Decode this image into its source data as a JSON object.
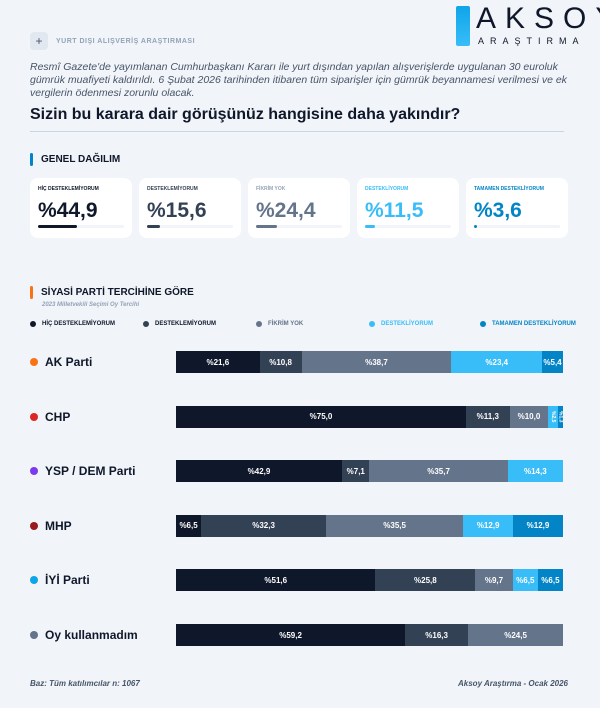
{
  "brand": {
    "name": "AKSOY",
    "sub": "ARAŞTIRMA"
  },
  "tag": "YURT DIŞI ALIŞVERİŞ ARAŞTIRMASI",
  "intro": "Resmî Gazete'de yayımlanan Cumhurbaşkanı Kararı ile yurt dışından yapılan alışverişlerde uygulanan 30 euroluk gümrük muafiyeti kaldırıldı. 6 Şubat 2026 tarihinden itibaren tüm siparişler için gümrük beyannamesi verilmesi ve ek vergilerin ödenmesi zorunlu olacak.",
  "question": "Sizin bu karara dair görüşünüz hangisine daha yakındır?",
  "section1": {
    "title": "GENEL DAĞILIM",
    "color": "#0284c7"
  },
  "section2": {
    "title": "SİYASİ PARTİ TERCİHİNE GÖRE",
    "subtitle": "2023 Milletvekili Seçimi Oy Tercihi",
    "color": "#f97316"
  },
  "footer": {
    "left": "Baz: Tüm katılımcılar n: 1067",
    "right": "Aksoy Araştırma - Ocak 2026"
  },
  "chart_data": [
    {
      "type": "bar",
      "orientation": "horizontal",
      "title": "GENEL DAĞILIM",
      "categories": [
        "HİÇ DESTEKLEMİYORUM",
        "DESTEKLEMİYORUM",
        "FİKRİM YOK",
        "DESTEKLİYORUM",
        "TAMAMEN DESTEKLİYORUM"
      ],
      "values": [
        44.9,
        15.6,
        24.4,
        11.5,
        3.6
      ],
      "labels": [
        "%44,9",
        "%15,6",
        "%24,4",
        "%11,5",
        "%3,6"
      ],
      "colors": [
        "#0f172a",
        "#334155",
        "#64748b",
        "#38bdf8",
        "#0284c7"
      ]
    },
    {
      "type": "bar",
      "stacked": true,
      "orientation": "horizontal",
      "title": "SİYASİ PARTİ TERCİHİNE GÖRE",
      "categories": [
        "AK Parti",
        "CHP",
        "YSP / DEM Parti",
        "MHP",
        "İYİ Parti",
        "Oy kullanmadım"
      ],
      "category_colors": [
        "#f97316",
        "#dc2626",
        "#7c3aed",
        "#991b1b",
        "#0ea5e9",
        "#64748b"
      ],
      "legend": "top",
      "series": [
        {
          "name": "HİÇ DESTEKLEMİYORUM",
          "color": "#0f172a",
          "values": [
            21.6,
            75.0,
            42.9,
            6.5,
            51.6,
            59.2
          ]
        },
        {
          "name": "DESTEKLEMİYORUM",
          "color": "#334155",
          "values": [
            10.8,
            11.3,
            7.1,
            32.3,
            25.8,
            16.3
          ]
        },
        {
          "name": "FİKRİM YOK",
          "color": "#64748b",
          "values": [
            38.7,
            10.0,
            35.7,
            35.5,
            9.7,
            24.5
          ]
        },
        {
          "name": "DESTEKLİYORUM",
          "color": "#38bdf8",
          "values": [
            23.4,
            2.5,
            14.3,
            12.9,
            6.5,
            0
          ]
        },
        {
          "name": "TAMAMEN DESTEKLİYORUM",
          "color": "#0284c7",
          "values": [
            5.4,
            1.3,
            0,
            12.9,
            6.5,
            0
          ]
        }
      ]
    }
  ]
}
